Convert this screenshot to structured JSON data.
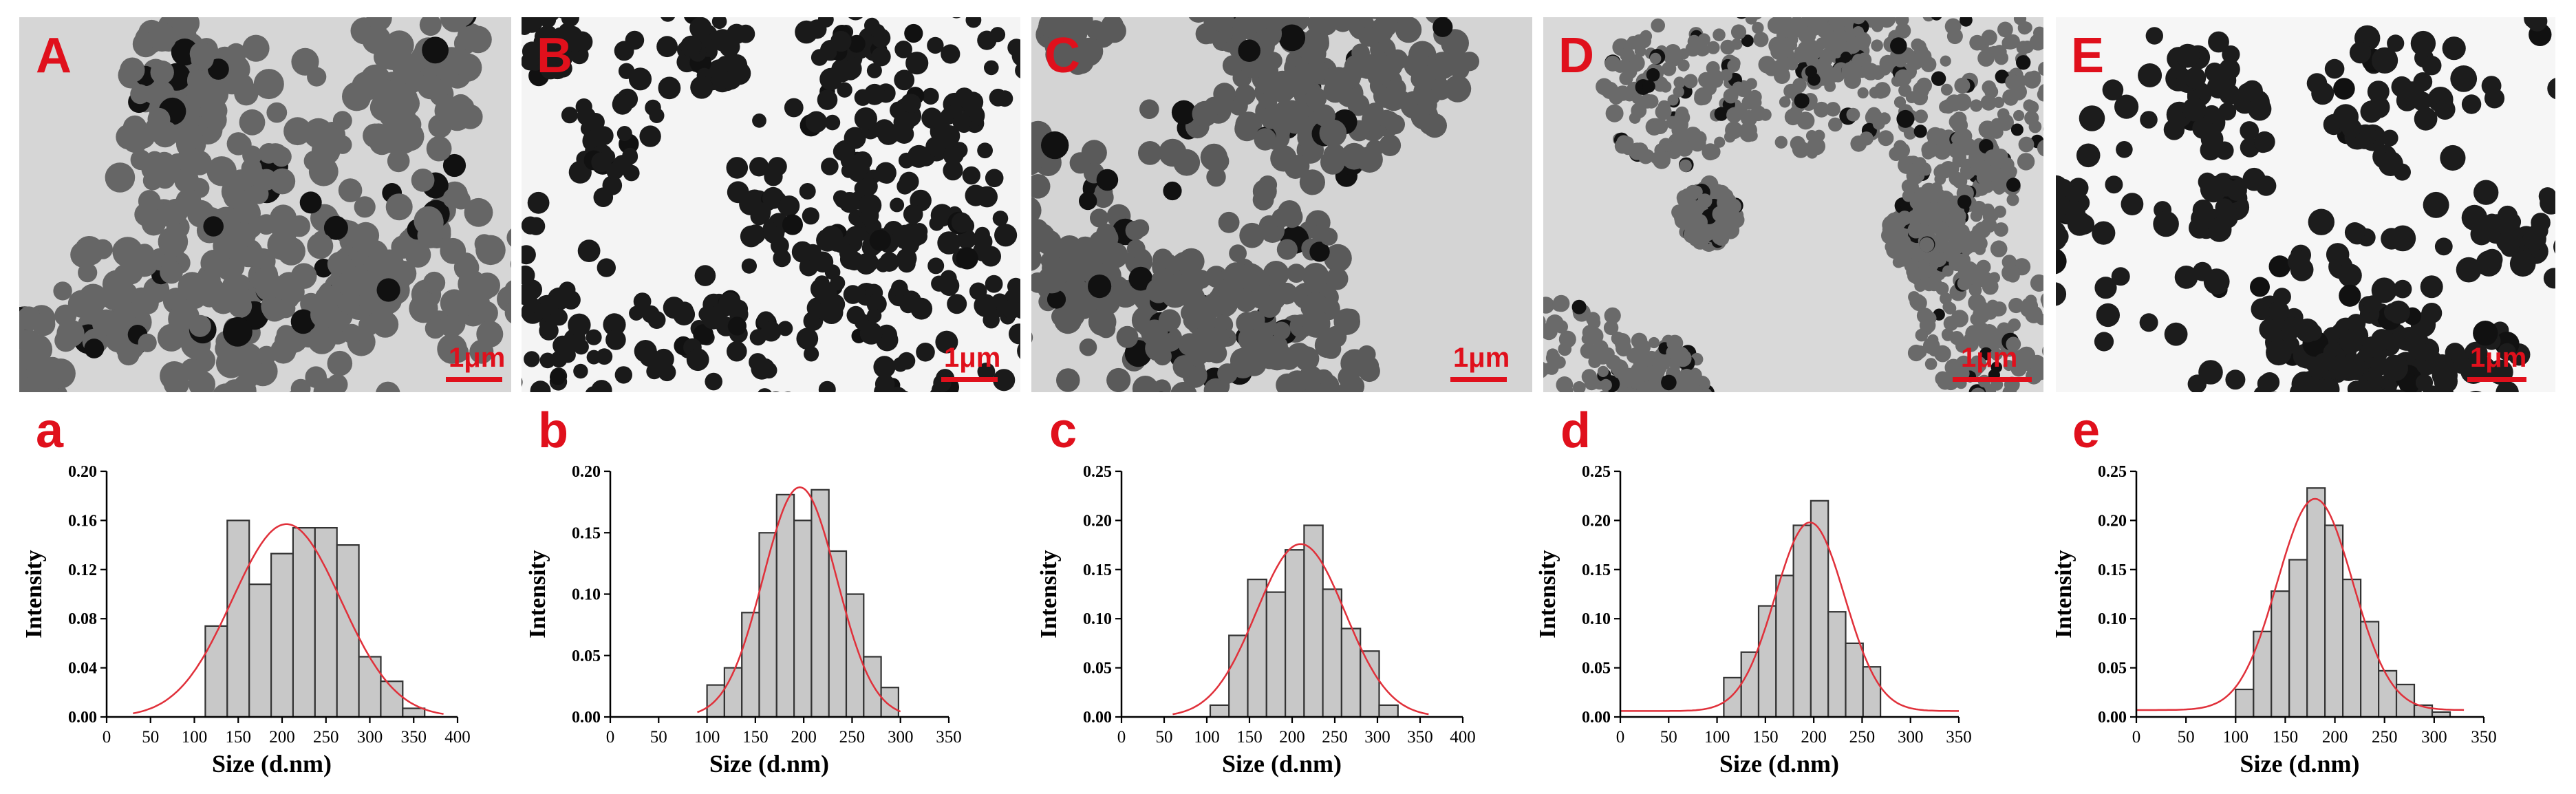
{
  "panels": [
    {
      "label": "A",
      "scale_bar": "1μm"
    },
    {
      "label": "B",
      "scale_bar": "1μm"
    },
    {
      "label": "C",
      "scale_bar": "1μm"
    },
    {
      "label": "D",
      "scale_bar": "1μm"
    },
    {
      "label": "E",
      "scale_bar": "1μm"
    }
  ],
  "colors": {
    "label": "#e0101c",
    "bar_fill": "#c8c8c8",
    "fit_curve": "#e0303a"
  },
  "chart_data": [
    {
      "type": "bar",
      "panel_label": "a",
      "xlabel": "Size (d.nm)",
      "ylabel": "Intensity",
      "xlim": [
        0,
        400
      ],
      "xticks": [
        0,
        50,
        100,
        150,
        200,
        250,
        300,
        350,
        400
      ],
      "ylim": [
        0,
        0.2
      ],
      "yticks": [
        0.0,
        0.04,
        0.08,
        0.12,
        0.16,
        0.2
      ],
      "ytick_decimals": 2,
      "bin_width": 25,
      "bins": [
        125,
        150,
        175,
        200,
        225,
        250,
        275,
        300,
        325,
        350
      ],
      "values": [
        0.074,
        0.16,
        0.108,
        0.133,
        0.154,
        0.154,
        0.14,
        0.049,
        0.029,
        0.007
      ],
      "fit": {
        "mean": 205,
        "sd": 62,
        "peak": 0.157,
        "offset": 0.0,
        "range": [
          30,
          385
        ]
      }
    },
    {
      "type": "bar",
      "panel_label": "b",
      "xlabel": "Size (d.nm)",
      "ylabel": "Intensity",
      "xlim": [
        0,
        350
      ],
      "xticks": [
        0,
        50,
        100,
        150,
        200,
        250,
        300,
        350
      ],
      "ylim": [
        0,
        0.2
      ],
      "yticks": [
        0.0,
        0.05,
        0.1,
        0.15,
        0.2
      ],
      "ytick_decimals": 2,
      "bin_width": 18,
      "bins": [
        109,
        127,
        145,
        163,
        181,
        199,
        217,
        235,
        253,
        271,
        289
      ],
      "values": [
        0.026,
        0.04,
        0.085,
        0.15,
        0.181,
        0.16,
        0.185,
        0.135,
        0.1,
        0.049,
        0.024
      ],
      "fit": {
        "mean": 196,
        "sd": 38,
        "peak": 0.187,
        "offset": 0.0,
        "range": [
          90,
          300
        ]
      }
    },
    {
      "type": "bar",
      "panel_label": "c",
      "xlabel": "Size (d.nm)",
      "ylabel": "Intensity",
      "xlim": [
        0,
        400
      ],
      "xticks": [
        0,
        50,
        100,
        150,
        200,
        250,
        300,
        350,
        400
      ],
      "ylim": [
        0,
        0.25
      ],
      "yticks": [
        0.0,
        0.05,
        0.1,
        0.15,
        0.2,
        0.25
      ],
      "ytick_decimals": 2,
      "bin_width": 22,
      "bins": [
        115,
        137,
        159,
        181,
        203,
        225,
        247,
        269,
        291,
        313
      ],
      "values": [
        0.012,
        0.083,
        0.14,
        0.127,
        0.17,
        0.195,
        0.13,
        0.09,
        0.067,
        0.012
      ],
      "fit": {
        "mean": 210,
        "sd": 52,
        "peak": 0.176,
        "offset": 0.0,
        "range": [
          60,
          360
        ]
      }
    },
    {
      "type": "bar",
      "panel_label": "d",
      "xlabel": "Size (d.nm)",
      "ylabel": "Intensity",
      "xlim": [
        0,
        350
      ],
      "xticks": [
        0,
        50,
        100,
        150,
        200,
        250,
        300,
        350
      ],
      "ylim": [
        0,
        0.25
      ],
      "yticks": [
        0.0,
        0.05,
        0.1,
        0.15,
        0.2,
        0.25
      ],
      "ytick_decimals": 2,
      "bin_width": 18,
      "bins": [
        116,
        134,
        152,
        170,
        188,
        206,
        224,
        242,
        260
      ],
      "values": [
        0.04,
        0.066,
        0.113,
        0.144,
        0.195,
        0.22,
        0.107,
        0.075,
        0.051
      ],
      "fit": {
        "mean": 196,
        "sd": 36,
        "peak": 0.192,
        "offset": 0.006,
        "range": [
          0,
          350
        ]
      }
    },
    {
      "type": "bar",
      "panel_label": "e",
      "xlabel": "Size (d.nm)",
      "ylabel": "Intensity",
      "xlim": [
        0,
        350
      ],
      "xticks": [
        0,
        50,
        100,
        150,
        200,
        250,
        300,
        350
      ],
      "ylim": [
        0,
        0.25
      ],
      "yticks": [
        0.0,
        0.05,
        0.1,
        0.15,
        0.2,
        0.25
      ],
      "ytick_decimals": 2,
      "bin_width": 18,
      "bins": [
        109,
        127,
        145,
        163,
        181,
        199,
        217,
        235,
        253,
        271,
        289,
        307
      ],
      "values": [
        0.028,
        0.087,
        0.128,
        0.16,
        0.233,
        0.195,
        0.14,
        0.097,
        0.047,
        0.033,
        0.012,
        0.005
      ],
      "fit": {
        "mean": 180,
        "sd": 38,
        "peak": 0.215,
        "offset": 0.007,
        "range": [
          0,
          330
        ]
      }
    }
  ]
}
